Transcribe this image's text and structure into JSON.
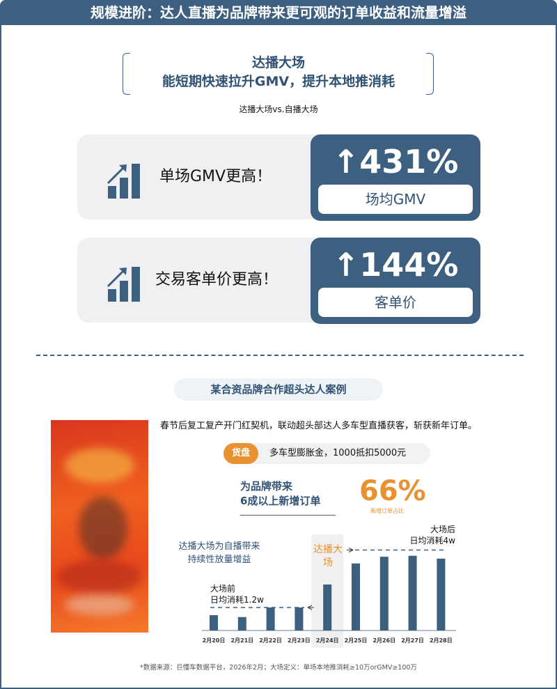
{
  "header": {
    "title": "规模进阶：达人直播为品牌带来更可观的订单收益和流量增溢"
  },
  "intro": {
    "line1": "达播大场",
    "line2": "能短期快速拉升GMV，提升本地推消耗",
    "comparison": "达播大场vs.自播大场"
  },
  "cards": [
    {
      "icon": "bar-chart-up-icon",
      "text": "单场GMV更高！",
      "value": "↑431%",
      "label": "场均GMV"
    },
    {
      "icon": "bar-chart-up-icon",
      "text": "交易客单价更高！",
      "value": "↑144%",
      "label": "客单价"
    }
  ],
  "case": {
    "title": "某合资品牌合作超头达人案例",
    "description": "春节后复工复产开门红契机，联动超头部达人多车型直播获客，斩获新年订单。",
    "tag": "货盘",
    "tag_text": "多车型膨胀金，1000抵扣5000元",
    "brand_line1": "为品牌带来",
    "brand_line2": "6成以上新增订单",
    "stat_value": "66%",
    "stat_label": "新增订单占比",
    "side_note_line1": "达播大场为自播带来",
    "side_note_line2": "持续性放量增益"
  },
  "colors": {
    "primary": "#3d5f80",
    "accent": "#e8912f",
    "card_bg": "#f0f0f3"
  },
  "chart_data": {
    "type": "bar",
    "categories": [
      "2月20日",
      "2月21日",
      "2月22日",
      "2月23日",
      "2月24日",
      "2月25日",
      "2月26日",
      "2月27日",
      "2月28日"
    ],
    "values": [
      0.8,
      0.7,
      1.2,
      1.2,
      2.4,
      3.5,
      3.85,
      3.9,
      3.75
    ],
    "unit": "w",
    "highlight_category": "2月24日",
    "highlight_label": "达播大场",
    "annotations": [
      {
        "line1": "大场前",
        "line2": "日均消耗1.2w",
        "level": 1.2
      },
      {
        "line1": "大场后",
        "line2": "日均消耗4w",
        "level": 4.2
      }
    ],
    "ylim": [
      0,
      4.5
    ],
    "grid": false,
    "bar_color": "#3d5f80"
  },
  "footer": {
    "note": "*数据来源：巨懂车数据平台，2026年2月；大场定义：单场本地推消耗≥10万orGMV≥100万"
  }
}
